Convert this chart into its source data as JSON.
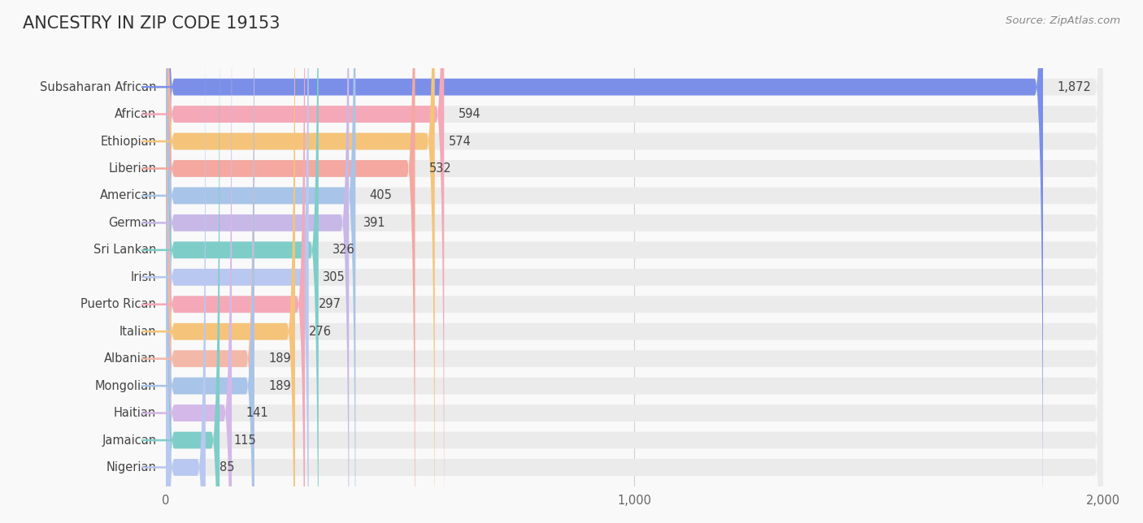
{
  "title": "ANCESTRY IN ZIP CODE 19153",
  "source": "Source: ZipAtlas.com",
  "categories": [
    "Subsaharan African",
    "African",
    "Ethiopian",
    "Liberian",
    "American",
    "German",
    "Sri Lankan",
    "Irish",
    "Puerto Rican",
    "Italian",
    "Albanian",
    "Mongolian",
    "Haitian",
    "Jamaican",
    "Nigerian"
  ],
  "values": [
    1872,
    594,
    574,
    532,
    405,
    391,
    326,
    305,
    297,
    276,
    189,
    189,
    141,
    115,
    85
  ],
  "bar_colors": [
    "#7b8fe8",
    "#f4a8b8",
    "#f5c47a",
    "#f4a8a0",
    "#a8c4e8",
    "#c8b8e8",
    "#7ecdc8",
    "#b8c8f0",
    "#f4a8b8",
    "#f5c47a",
    "#f4b8a8",
    "#a8c4e8",
    "#d4b8e8",
    "#7ecdc8",
    "#b8c8f0"
  ],
  "xlim": [
    0,
    2000
  ],
  "xticks": [
    0,
    1000,
    2000
  ],
  "background_color": "#f9f9f9",
  "bar_bg_color": "#ebebeb",
  "title_fontsize": 15,
  "label_fontsize": 10.5,
  "value_fontsize": 10.5,
  "source_fontsize": 9.5
}
